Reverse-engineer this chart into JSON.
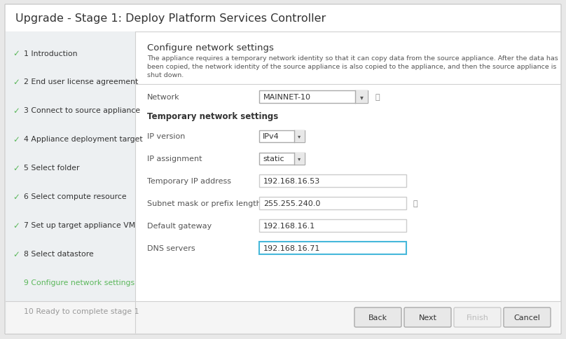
{
  "title": "Upgrade - Stage 1: Deploy Platform Services Controller",
  "bg_outer": "#e8e8e8",
  "bg_dialog": "#ffffff",
  "bg_sidebar": "#edf0f2",
  "bg_footer": "#f5f5f5",
  "border_color": "#cccccc",
  "divider_color": "#d0d0d0",
  "sidebar_items": [
    {
      "num": 1,
      "text": "Introduction",
      "check": true,
      "active": false
    },
    {
      "num": 2,
      "text": "End user license agreement",
      "check": true,
      "active": false
    },
    {
      "num": 3,
      "text": "Connect to source appliance",
      "check": true,
      "active": false
    },
    {
      "num": 4,
      "text": "Appliance deployment target",
      "check": true,
      "active": false
    },
    {
      "num": 5,
      "text": "Select folder",
      "check": true,
      "active": false
    },
    {
      "num": 6,
      "text": "Select compute resource",
      "check": true,
      "active": false
    },
    {
      "num": 7,
      "text": "Set up target appliance VM",
      "check": true,
      "active": false
    },
    {
      "num": 8,
      "text": "Select datastore",
      "check": true,
      "active": false
    },
    {
      "num": 9,
      "text": "Configure network settings",
      "check": false,
      "active": true
    },
    {
      "num": 10,
      "text": "Ready to complete stage 1",
      "check": false,
      "active": false
    }
  ],
  "check_color": "#5cb85c",
  "active_color": "#5cb85c",
  "inactive_color": "#999999",
  "text_dark": "#333333",
  "text_mid": "#555555",
  "text_light": "#aaaaaa",
  "section_title": "Configure network settings",
  "section_desc_lines": [
    "The appliance requires a temporary network identity so that it can copy data from the source appliance. After the data has",
    "been copied, the network identity of the source appliance is also copied to the appliance, and then the source appliance is",
    "shut down."
  ],
  "network_label": "Network",
  "network_value": "MAINNET-10",
  "temp_section_title": "Temporary network settings",
  "fields": [
    {
      "label": "IP version",
      "value": "IPv4",
      "type": "dropdown_small",
      "active": false
    },
    {
      "label": "IP assignment",
      "value": "static",
      "type": "dropdown_small",
      "active": false
    },
    {
      "label": "Temporary IP address",
      "value": "192.168.16.53",
      "type": "input",
      "active": false
    },
    {
      "label": "Subnet mask or prefix length",
      "value": "255.255.240.0",
      "type": "input_info",
      "active": false
    },
    {
      "label": "Default gateway",
      "value": "192.168.16.1",
      "type": "input",
      "active": false
    },
    {
      "label": "DNS servers",
      "value": "192.168.16.71",
      "type": "input",
      "active": true
    }
  ],
  "buttons": [
    {
      "text": "Back",
      "enabled": true
    },
    {
      "text": "Next",
      "enabled": true
    },
    {
      "text": "Finish",
      "enabled": false
    },
    {
      "text": "Cancel",
      "enabled": true
    }
  ],
  "btn_border_enabled": "#aaaaaa",
  "btn_border_disabled": "#cccccc",
  "btn_face_enabled": "#e8e8e8",
  "btn_face_disabled": "#f0f0f0",
  "btn_text_enabled": "#333333",
  "btn_text_disabled": "#bbbbbb",
  "input_border": "#cccccc",
  "input_active_border": "#46b8da",
  "dropdown_border": "#aaaaaa"
}
